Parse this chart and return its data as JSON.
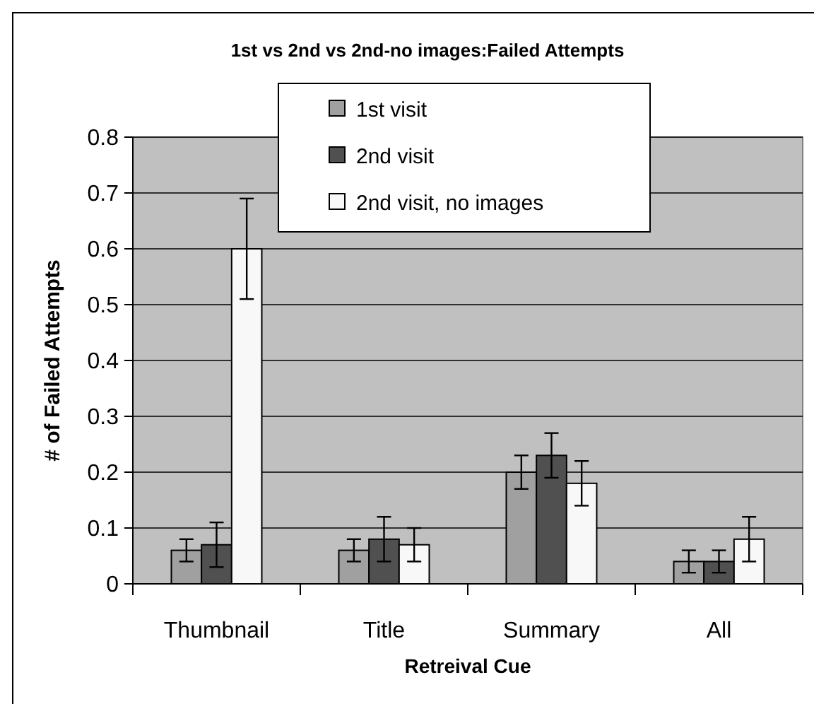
{
  "chart_data": {
    "type": "bar",
    "title": "1st vs 2nd vs 2nd-no images:Failed Attempts",
    "xlabel": "Retreival Cue",
    "ylabel": "# of Failed Attempts",
    "categories": [
      "Thumbnail",
      "Title",
      "Summary",
      "All"
    ],
    "series": [
      {
        "name": "1st visit",
        "color": "#a0a0a0",
        "values": [
          0.06,
          0.06,
          0.2,
          0.04
        ],
        "errors": [
          0.02,
          0.02,
          0.03,
          0.02
        ]
      },
      {
        "name": "2nd visit",
        "color": "#505050",
        "values": [
          0.07,
          0.08,
          0.23,
          0.04
        ],
        "errors": [
          0.04,
          0.04,
          0.04,
          0.02
        ]
      },
      {
        "name": "2nd visit, no images",
        "color": "#f8f8f8",
        "values": [
          0.6,
          0.07,
          0.18,
          0.08
        ],
        "errors": [
          0.09,
          [
            0.04,
            0.1
          ],
          0.04,
          0.04
        ]
      }
    ],
    "ylim": [
      0,
      0.8
    ],
    "yticks": [
      0,
      0.1,
      0.2,
      0.3,
      0.4,
      0.5,
      0.6,
      0.7,
      0.8
    ],
    "grid": "y",
    "legend": "top"
  }
}
